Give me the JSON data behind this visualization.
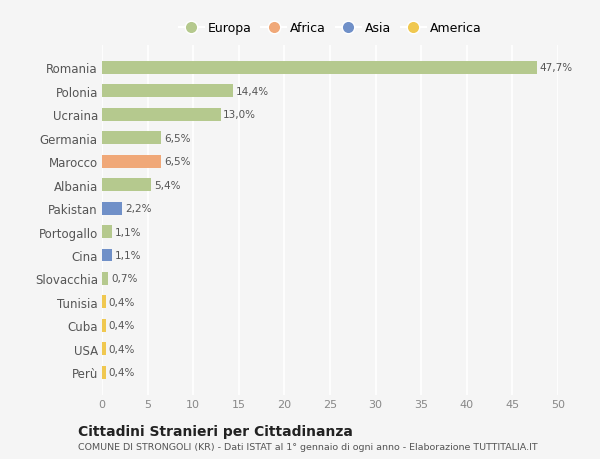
{
  "countries": [
    "Romania",
    "Polonia",
    "Ucraina",
    "Germania",
    "Marocco",
    "Albania",
    "Pakistan",
    "Portogallo",
    "Cina",
    "Slovacchia",
    "Tunisia",
    "Cuba",
    "USA",
    "Perù"
  ],
  "values": [
    47.7,
    14.4,
    13.0,
    6.5,
    6.5,
    5.4,
    2.2,
    1.1,
    1.1,
    0.7,
    0.4,
    0.4,
    0.4,
    0.4
  ],
  "labels": [
    "47,7%",
    "14,4%",
    "13,0%",
    "6,5%",
    "6,5%",
    "5,4%",
    "2,2%",
    "1,1%",
    "1,1%",
    "0,7%",
    "0,4%",
    "0,4%",
    "0,4%",
    "0,4%"
  ],
  "colors": [
    "#b5c98e",
    "#b5c98e",
    "#b5c98e",
    "#b5c98e",
    "#f0a878",
    "#b5c98e",
    "#7090c8",
    "#b5c98e",
    "#7090c8",
    "#b5c98e",
    "#f0c850",
    "#f0c850",
    "#f0c850",
    "#f0c850"
  ],
  "legend_labels": [
    "Europa",
    "Africa",
    "Asia",
    "America"
  ],
  "legend_colors": [
    "#b5c98e",
    "#f0a878",
    "#7090c8",
    "#f0c850"
  ],
  "title": "Cittadini Stranieri per Cittadinanza",
  "subtitle": "COMUNE DI STRONGOLI (KR) - Dati ISTAT al 1° gennaio di ogni anno - Elaborazione TUTTITALIA.IT",
  "xlim": [
    0,
    50
  ],
  "xticks": [
    0,
    5,
    10,
    15,
    20,
    25,
    30,
    35,
    40,
    45,
    50
  ],
  "background_color": "#f5f5f5",
  "grid_color": "#ffffff",
  "bar_height": 0.55
}
